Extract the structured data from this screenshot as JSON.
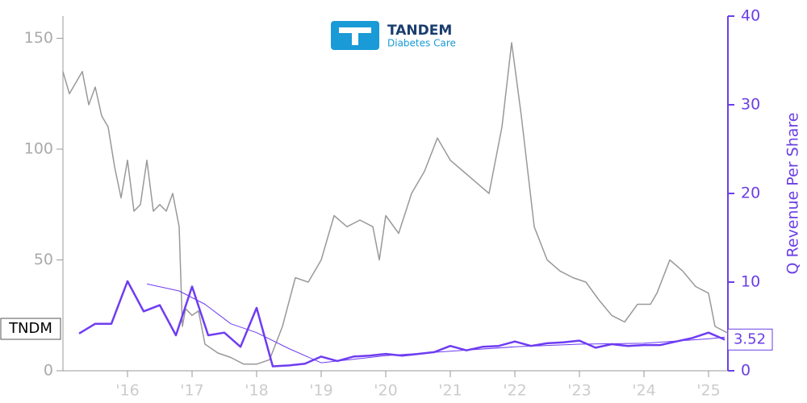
{
  "logo": {
    "name": "TANDEM",
    "tagline": "Diabetes Care"
  },
  "chart_data": {
    "type": "line",
    "y2label": "Q Revenue Per Share",
    "xlim": [
      2015,
      2025.3
    ],
    "xticks": [
      {
        "value": 2016,
        "label": "'16"
      },
      {
        "value": 2017,
        "label": "'17"
      },
      {
        "value": 2018,
        "label": "'18"
      },
      {
        "value": 2019,
        "label": "'19"
      },
      {
        "value": 2020,
        "label": "'20"
      },
      {
        "value": 2021,
        "label": "'21"
      },
      {
        "value": 2022,
        "label": "'22"
      },
      {
        "value": 2023,
        "label": "'23"
      },
      {
        "value": 2024,
        "label": "'24"
      },
      {
        "value": 2025,
        "label": "'25"
      }
    ],
    "ylim": [
      0,
      160
    ],
    "yticks": [
      0,
      50,
      100,
      150
    ],
    "y2lim": [
      0,
      40
    ],
    "y2ticks": [
      0,
      10,
      20,
      30,
      40
    ],
    "axis_color": "#999999",
    "axis2_color": "#6b3fe6",
    "series": [
      {
        "name": "TNDM",
        "color": "#999999",
        "x": [
          2015.0,
          2015.1,
          2015.2,
          2015.3,
          2015.4,
          2015.5,
          2015.6,
          2015.7,
          2015.8,
          2015.9,
          2016.0,
          2016.1,
          2016.2,
          2016.3,
          2016.4,
          2016.5,
          2016.6,
          2016.7,
          2016.8,
          2016.85,
          2016.9,
          2017.0,
          2017.1,
          2017.2,
          2017.4,
          2017.6,
          2017.8,
          2018.0,
          2018.2,
          2018.4,
          2018.6,
          2018.8,
          2019.0,
          2019.2,
          2019.4,
          2019.6,
          2019.8,
          2019.9,
          2020.0,
          2020.2,
          2020.4,
          2020.6,
          2020.8,
          2021.0,
          2021.2,
          2021.4,
          2021.6,
          2021.8,
          2021.95,
          2022.1,
          2022.3,
          2022.5,
          2022.7,
          2022.9,
          2023.1,
          2023.3,
          2023.5,
          2023.7,
          2023.9,
          2024.1,
          2024.2,
          2024.4,
          2024.6,
          2024.8,
          2025.0,
          2025.1,
          2025.3
        ],
        "values": [
          135,
          125,
          130,
          135,
          120,
          128,
          115,
          110,
          92,
          78,
          95,
          72,
          75,
          95,
          72,
          75,
          72,
          80,
          65,
          20,
          28,
          25,
          27,
          12,
          8,
          6,
          3,
          3,
          5,
          20,
          42,
          40,
          50,
          70,
          65,
          68,
          65,
          50,
          70,
          62,
          80,
          90,
          105,
          95,
          90,
          85,
          80,
          110,
          148,
          115,
          65,
          50,
          45,
          42,
          40,
          32,
          25,
          22,
          30,
          30,
          35,
          50,
          45,
          38,
          35,
          20,
          17
        ]
      },
      {
        "color": "#6e3cf2",
        "axis": "y2",
        "x": [
          2015.25,
          2015.5,
          2015.75,
          2016.0,
          2016.25,
          2016.5,
          2016.75,
          2017.0,
          2017.25,
          2017.5,
          2017.75,
          2018.0,
          2018.25,
          2018.5,
          2018.75,
          2019.0,
          2019.25,
          2019.5,
          2019.75,
          2020.0,
          2020.25,
          2020.5,
          2020.75,
          2021.0,
          2021.25,
          2021.5,
          2021.75,
          2022.0,
          2022.25,
          2022.5,
          2022.75,
          2023.0,
          2023.25,
          2023.5,
          2023.75,
          2024.0,
          2024.25,
          2024.5,
          2024.75,
          2025.0,
          2025.25
        ],
        "values": [
          4.2,
          5.3,
          5.3,
          10.1,
          6.7,
          7.4,
          4.0,
          9.5,
          4.0,
          4.3,
          2.7,
          7.1,
          0.5,
          0.6,
          0.8,
          1.6,
          1.1,
          1.6,
          1.7,
          1.9,
          1.7,
          1.9,
          2.1,
          2.8,
          2.3,
          2.7,
          2.8,
          3.3,
          2.8,
          3.1,
          3.2,
          3.4,
          2.6,
          3.0,
          2.8,
          2.9,
          2.9,
          3.3,
          3.7,
          4.3,
          3.52
        ]
      },
      {
        "color": "#6e3cf2",
        "axis": "y2",
        "thin": true,
        "x": [
          2016.3,
          2016.8,
          2017.2,
          2017.6,
          2018.0,
          2018.5,
          2019.0,
          2019.5,
          2020.0,
          2021.0,
          2022.0,
          2023.0,
          2024.0,
          2025.0,
          2025.25
        ],
        "values": [
          9.8,
          9.0,
          7.5,
          5.3,
          4.3,
          2.5,
          0.9,
          1.3,
          1.7,
          2.2,
          2.7,
          3.0,
          3.1,
          3.6,
          3.8
        ]
      }
    ],
    "annotations": [
      {
        "text": "3.52",
        "x": 2025.25,
        "y": 3.52,
        "axis": "y2"
      }
    ]
  }
}
